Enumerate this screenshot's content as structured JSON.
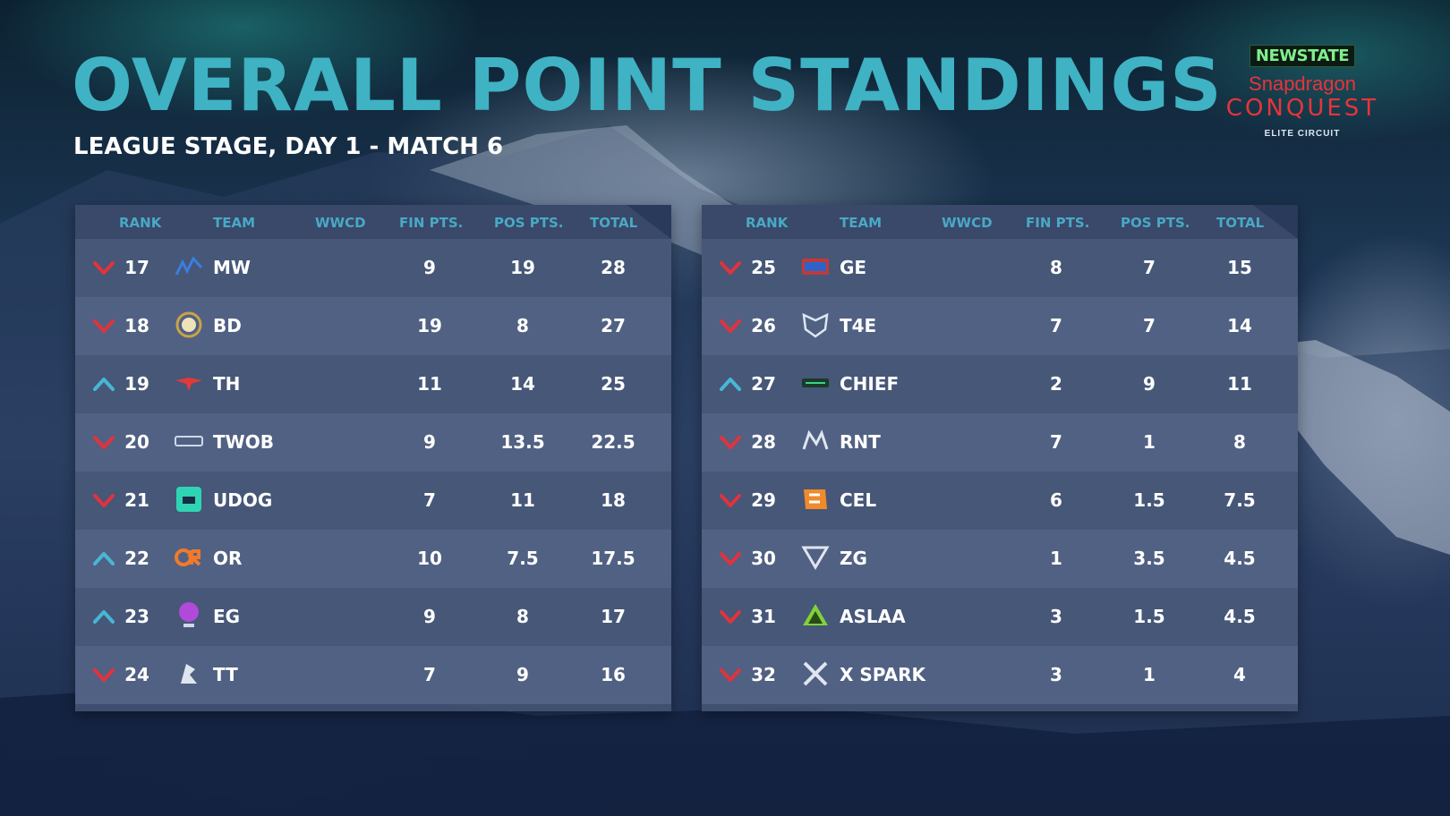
{
  "header": {
    "title": "OVERALL POINT STANDINGS",
    "subtitle": "LEAGUE STAGE, DAY 1 - MATCH 6"
  },
  "logo": {
    "newstate": "NEWSTATE",
    "brand": "Snapdragon",
    "conquest": "CONQUEST",
    "circuit": "ELITE CIRCUIT"
  },
  "columns": [
    "RANK",
    "TEAM",
    "WWCD",
    "FIN PTS.",
    "POS PTS.",
    "TOTAL"
  ],
  "colors": {
    "title": "#3fb2c3",
    "up_arrow": "#48b6d4",
    "down_arrow": "#e0333d",
    "header_text": "#48a9c5"
  },
  "left_table": [
    {
      "rank": "17",
      "trend": "down",
      "icon": "mw-logo-icon",
      "team": "MW",
      "wwcd": "",
      "fin": "9",
      "pos": "19",
      "total": "28"
    },
    {
      "rank": "18",
      "trend": "down",
      "icon": "bd-logo-icon",
      "team": "BD",
      "wwcd": "",
      "fin": "19",
      "pos": "8",
      "total": "27"
    },
    {
      "rank": "19",
      "trend": "up",
      "icon": "th-logo-icon",
      "team": "TH",
      "wwcd": "",
      "fin": "11",
      "pos": "14",
      "total": "25"
    },
    {
      "rank": "20",
      "trend": "down",
      "icon": "twob-logo-icon",
      "team": "TWOB",
      "wwcd": "",
      "fin": "9",
      "pos": "13.5",
      "total": "22.5"
    },
    {
      "rank": "21",
      "trend": "down",
      "icon": "udog-logo-icon",
      "team": "UDOG",
      "wwcd": "",
      "fin": "7",
      "pos": "11",
      "total": "18"
    },
    {
      "rank": "22",
      "trend": "up",
      "icon": "or-logo-icon",
      "team": "OR",
      "wwcd": "",
      "fin": "10",
      "pos": "7.5",
      "total": "17.5"
    },
    {
      "rank": "23",
      "trend": "up",
      "icon": "eg-logo-icon",
      "team": "EG",
      "wwcd": "",
      "fin": "9",
      "pos": "8",
      "total": "17"
    },
    {
      "rank": "24",
      "trend": "down",
      "icon": "tt-logo-icon",
      "team": "TT",
      "wwcd": "",
      "fin": "7",
      "pos": "9",
      "total": "16"
    }
  ],
  "right_table": [
    {
      "rank": "25",
      "trend": "down",
      "icon": "ge-logo-icon",
      "team": "GE",
      "wwcd": "",
      "fin": "8",
      "pos": "7",
      "total": "15"
    },
    {
      "rank": "26",
      "trend": "down",
      "icon": "t4e-logo-icon",
      "team": "T4E",
      "wwcd": "",
      "fin": "7",
      "pos": "7",
      "total": "14"
    },
    {
      "rank": "27",
      "trend": "up",
      "icon": "chief-logo-icon",
      "team": "CHIEF",
      "wwcd": "",
      "fin": "2",
      "pos": "9",
      "total": "11"
    },
    {
      "rank": "28",
      "trend": "down",
      "icon": "rnt-logo-icon",
      "team": "RNT",
      "wwcd": "",
      "fin": "7",
      "pos": "1",
      "total": "8"
    },
    {
      "rank": "29",
      "trend": "down",
      "icon": "cel-logo-icon",
      "team": "CEL",
      "wwcd": "",
      "fin": "6",
      "pos": "1.5",
      "total": "7.5"
    },
    {
      "rank": "30",
      "trend": "down",
      "icon": "zg-logo-icon",
      "team": "ZG",
      "wwcd": "",
      "fin": "1",
      "pos": "3.5",
      "total": "4.5"
    },
    {
      "rank": "31",
      "trend": "down",
      "icon": "aslaa-logo-icon",
      "team": "ASLAA",
      "wwcd": "",
      "fin": "3",
      "pos": "1.5",
      "total": "4.5"
    },
    {
      "rank": "32",
      "trend": "down",
      "icon": "xspark-logo-icon",
      "team": "X SPARK",
      "wwcd": "",
      "fin": "3",
      "pos": "1",
      "total": "4"
    }
  ]
}
